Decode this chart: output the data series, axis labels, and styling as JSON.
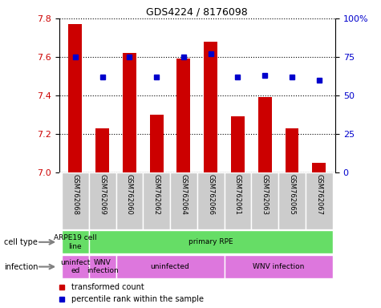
{
  "title": "GDS4224 / 8176098",
  "samples": [
    "GSM762068",
    "GSM762069",
    "GSM762060",
    "GSM762062",
    "GSM762064",
    "GSM762066",
    "GSM762061",
    "GSM762063",
    "GSM762065",
    "GSM762067"
  ],
  "transformed_count": [
    7.77,
    7.23,
    7.62,
    7.3,
    7.59,
    7.68,
    7.29,
    7.39,
    7.23,
    7.05
  ],
  "percentile_rank": [
    75,
    62,
    75,
    62,
    75,
    77,
    62,
    63,
    62,
    60
  ],
  "ylim": [
    7.0,
    7.8
  ],
  "yticks": [
    7.0,
    7.2,
    7.4,
    7.6,
    7.8
  ],
  "right_ylim": [
    0,
    100
  ],
  "right_yticks": [
    0,
    25,
    50,
    75,
    100
  ],
  "right_yticklabels": [
    "0",
    "25",
    "50",
    "75",
    "100%"
  ],
  "bar_color": "#cc0000",
  "dot_color": "#0000cc",
  "cell_spans": [
    {
      "label": "ARPE19 cell\nline",
      "color": "#66dd66",
      "xstart": -0.5,
      "xend": 0.5
    },
    {
      "label": "primary RPE",
      "color": "#66dd66",
      "xstart": 0.5,
      "xend": 9.5
    }
  ],
  "infect_spans": [
    {
      "label": "uninfect\ned",
      "color": "#dd77dd",
      "xstart": -0.5,
      "xend": 0.5
    },
    {
      "label": "WNV\ninfection",
      "color": "#dd77dd",
      "xstart": 0.5,
      "xend": 1.5
    },
    {
      "label": "uninfected",
      "color": "#dd77dd",
      "xstart": 1.5,
      "xend": 5.5
    },
    {
      "label": "WNV infection",
      "color": "#dd77dd",
      "xstart": 5.5,
      "xend": 9.5
    }
  ],
  "left_label_color": "#cc0000",
  "right_label_color": "#0000cc",
  "sample_bg_color": "#cccccc"
}
